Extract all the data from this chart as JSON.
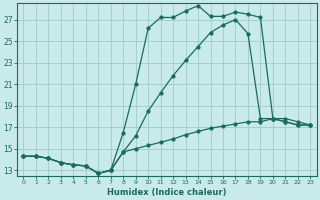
{
  "xlabel": "Humidex (Indice chaleur)",
  "bg_color": "#c8eaea",
  "grid_color": "#a0cccc",
  "line_color": "#1a6b5a",
  "xlim": [
    -0.5,
    23.5
  ],
  "ylim": [
    12.5,
    28.5
  ],
  "yticks": [
    13,
    15,
    17,
    19,
    21,
    23,
    25,
    27
  ],
  "xticks": [
    0,
    1,
    2,
    3,
    4,
    5,
    6,
    7,
    8,
    9,
    10,
    11,
    12,
    13,
    14,
    15,
    16,
    17,
    18,
    19,
    20,
    21,
    22,
    23
  ],
  "line1_x": [
    0,
    1,
    2,
    3,
    4,
    5,
    6,
    7,
    8,
    9,
    10,
    11,
    12,
    13,
    14,
    15,
    16,
    17,
    18,
    19,
    20,
    21,
    22,
    23
  ],
  "line1_y": [
    14.3,
    14.3,
    14.1,
    13.7,
    13.5,
    13.4,
    12.7,
    13.0,
    16.5,
    21.0,
    26.2,
    27.2,
    27.2,
    27.8,
    28.3,
    27.3,
    27.3,
    27.7,
    27.5,
    27.2,
    17.8,
    17.8,
    17.5,
    17.2
  ],
  "line2_x": [
    0,
    1,
    2,
    3,
    4,
    5,
    6,
    7,
    8,
    9,
    10,
    11,
    12,
    13,
    14,
    15,
    16,
    17,
    18,
    19,
    20,
    21,
    22,
    23
  ],
  "line2_y": [
    14.3,
    14.3,
    14.1,
    13.7,
    13.5,
    13.4,
    12.7,
    13.0,
    14.7,
    16.2,
    18.5,
    20.2,
    21.8,
    23.2,
    24.5,
    25.8,
    26.5,
    27.0,
    25.7,
    17.8,
    17.8,
    17.5,
    17.2,
    17.2
  ],
  "line3_x": [
    0,
    1,
    2,
    3,
    4,
    5,
    6,
    7,
    8,
    9,
    10,
    11,
    12,
    13,
    14,
    15,
    16,
    17,
    18,
    19,
    20,
    21,
    22,
    23
  ],
  "line3_y": [
    14.3,
    14.3,
    14.1,
    13.7,
    13.5,
    13.4,
    12.7,
    13.0,
    14.7,
    15.0,
    15.3,
    15.6,
    15.9,
    16.3,
    16.6,
    16.9,
    17.1,
    17.3,
    17.5,
    17.5,
    17.8,
    17.5,
    17.2,
    17.2
  ]
}
